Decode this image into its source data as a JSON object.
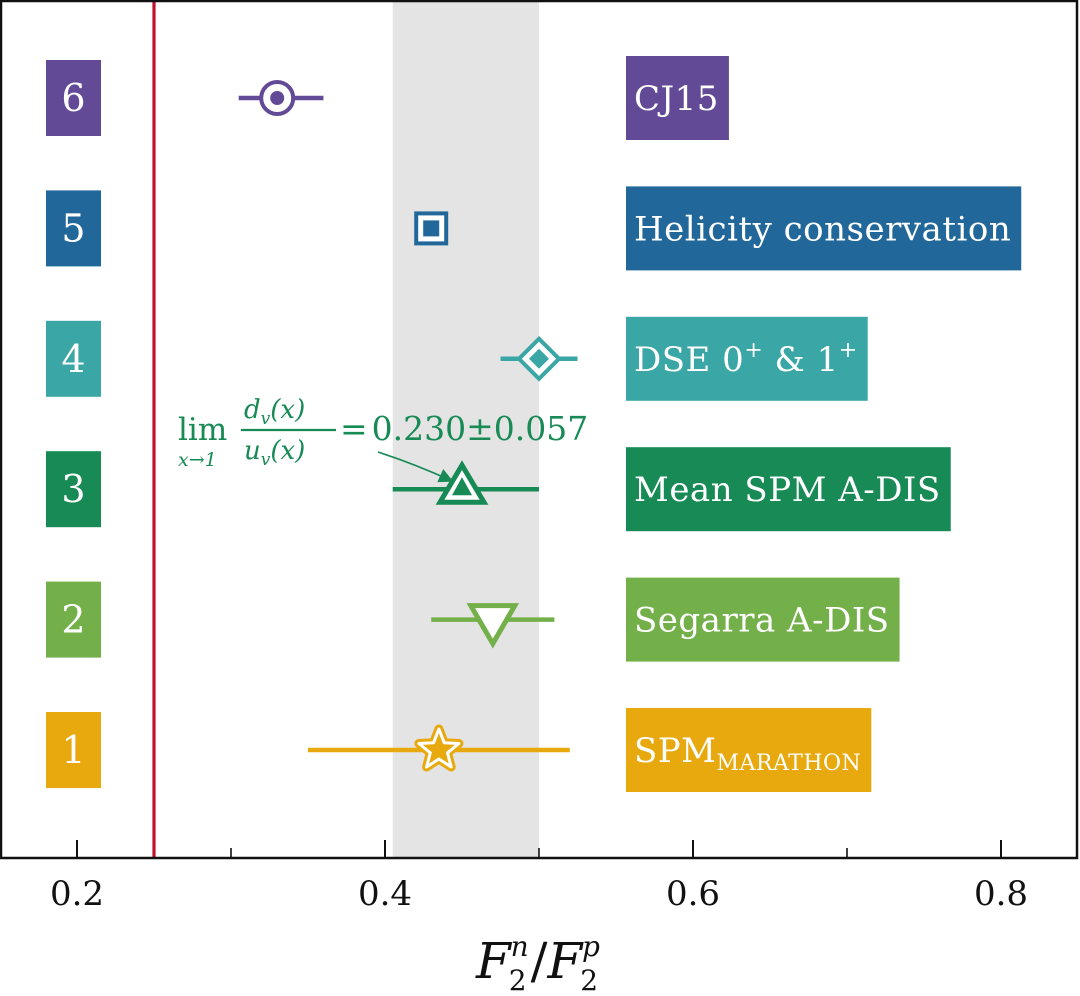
{
  "chart_data": {
    "type": "scatter",
    "xlabel": "F2n/F2p",
    "xlabel_parts": {
      "F": "F",
      "sub": "2",
      "sup_n": "n",
      "slash": "/",
      "sup_p": "p"
    },
    "xlim": [
      0.15,
      0.85
    ],
    "xticks": [
      0.2,
      0.4,
      0.6,
      0.8
    ],
    "xtick_labels": [
      "0.2",
      "0.4",
      "0.6",
      "0.8"
    ],
    "minor_xticks": [
      0.3,
      0.5,
      0.7
    ],
    "reference_line": {
      "x": 0.25,
      "color": "#c0122c"
    },
    "band": {
      "x_min": 0.405,
      "x_max": 0.5,
      "color": "#e4e4e4"
    },
    "series": [
      {
        "index": "1",
        "label": "SPM",
        "label_sub": "MARATHON",
        "x": 0.435,
        "x_min": 0.35,
        "x_max": 0.52,
        "marker": "star",
        "color": "#e8a90e"
      },
      {
        "index": "2",
        "label": "Segarra A-DIS",
        "x": 0.47,
        "x_min": 0.43,
        "x_max": 0.51,
        "marker": "triangle-down",
        "color": "#73b04a"
      },
      {
        "index": "3",
        "label": "Mean SPM A-DIS",
        "x": 0.45,
        "x_min": 0.405,
        "x_max": 0.5,
        "marker": "triangle-up",
        "color": "#178a55"
      },
      {
        "index": "4",
        "label": "DSE 0",
        "label_sup1": "+",
        "label_mid": " & 1",
        "label_sup2": "+",
        "x": 0.5,
        "x_min": 0.475,
        "x_max": 0.525,
        "marker": "diamond",
        "color": "#3aa6a5"
      },
      {
        "index": "5",
        "label": "Helicity conservation",
        "x": 0.43,
        "x_min": 0.43,
        "x_max": 0.43,
        "marker": "square",
        "color": "#21679a"
      },
      {
        "index": "6",
        "label": "CJ15",
        "x": 0.33,
        "x_min": 0.305,
        "x_max": 0.36,
        "marker": "circle",
        "color": "#634a96"
      }
    ],
    "annotation": {
      "lim": "lim",
      "lim_sub": "x→1",
      "num": "d",
      "num_sub": "v",
      "num_arg": "(x)",
      "den": "u",
      "den_sub": "v",
      "den_arg": "(x)",
      "equals": "=",
      "value": "0.230",
      "pm": "±",
      "error": "0.057",
      "color": "#178a55"
    }
  }
}
